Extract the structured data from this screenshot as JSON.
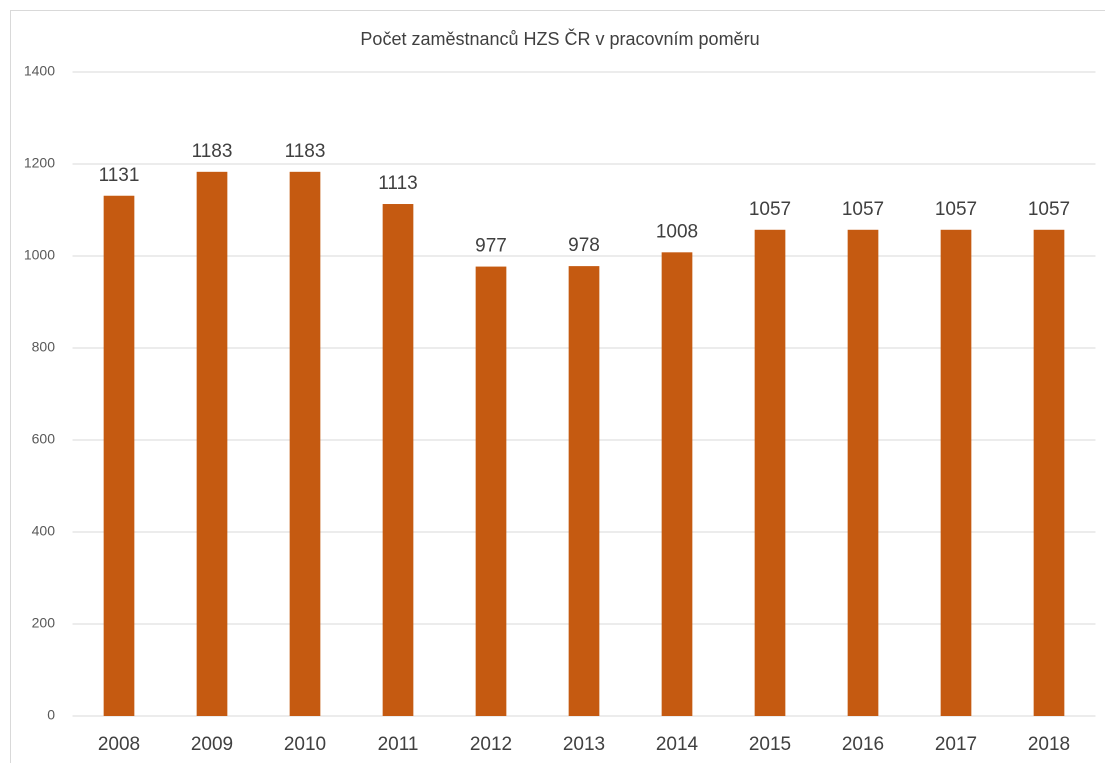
{
  "chart_data": {
    "type": "bar",
    "title": "Počet zaměstnanců HZS ČR v pracovním poměru",
    "categories": [
      "2008",
      "2009",
      "2010",
      "2011",
      "2012",
      "2013",
      "2014",
      "2015",
      "2016",
      "2017",
      "2018"
    ],
    "values": [
      1131,
      1183,
      1183,
      1113,
      977,
      978,
      1008,
      1057,
      1057,
      1057,
      1057
    ],
    "color": "#c55a11",
    "ylim": [
      0,
      1400
    ],
    "yticks": [
      0,
      200,
      400,
      600,
      800,
      1000,
      1200,
      1400
    ],
    "grid": true
  }
}
